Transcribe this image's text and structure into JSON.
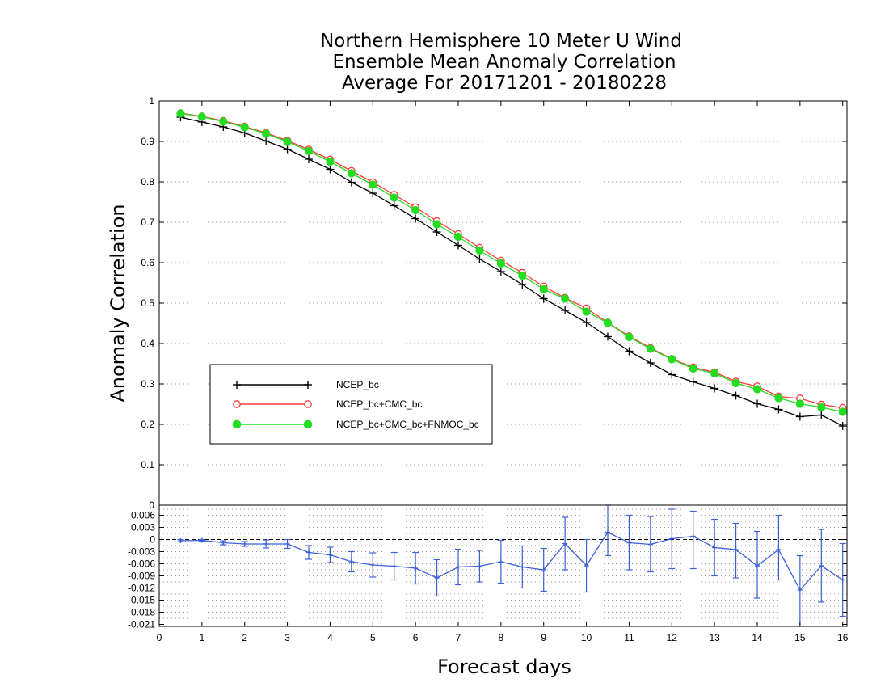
{
  "title_lines": [
    "Northern Hemisphere 10 Meter U Wind",
    "Ensemble Mean Anomaly Correlation",
    "Average For 20171201 - 20180228"
  ],
  "chart_data": [
    {
      "type": "line",
      "ylabel": "Anomaly Correlation",
      "xlim": [
        0,
        16.1
      ],
      "ylim": [
        0,
        1
      ],
      "yticks": [
        0,
        0.1,
        0.2,
        0.3,
        0.4,
        0.5,
        0.6,
        0.7,
        0.8,
        0.9,
        1
      ],
      "ytick_labels": [
        "0",
        "0.1",
        "0.2",
        "0.3",
        "0.4",
        "0.5",
        "0.6",
        "0.7",
        "0.8",
        "0.9",
        "1"
      ],
      "grid": true,
      "legend_position": "lower-left",
      "x": [
        0.5,
        1,
        1.5,
        2,
        2.5,
        3,
        3.5,
        4,
        4.5,
        5,
        5.5,
        6,
        6.5,
        7,
        7.5,
        8,
        8.5,
        9,
        9.5,
        10,
        10.5,
        11,
        11.5,
        12,
        12.5,
        13,
        13.5,
        14,
        14.5,
        15,
        15.5,
        16
      ],
      "series": [
        {
          "name": "NCEP_bc",
          "color": "#000000",
          "marker": "plus",
          "values": [
            0.96,
            0.948,
            0.936,
            0.921,
            0.901,
            0.881,
            0.856,
            0.831,
            0.799,
            0.772,
            0.741,
            0.709,
            0.676,
            0.643,
            0.609,
            0.578,
            0.546,
            0.511,
            0.482,
            0.452,
            0.417,
            0.381,
            0.352,
            0.323,
            0.305,
            0.289,
            0.271,
            0.251,
            0.237,
            0.219,
            0.223,
            0.196
          ]
        },
        {
          "name": "NCEP_bc+CMC_bc",
          "color": "#ff3b3b",
          "marker": "open-circle",
          "values": [
            0.97,
            0.962,
            0.951,
            0.937,
            0.921,
            0.902,
            0.88,
            0.855,
            0.827,
            0.799,
            0.768,
            0.737,
            0.703,
            0.671,
            0.637,
            0.605,
            0.575,
            0.541,
            0.513,
            0.487,
            0.452,
            0.418,
            0.389,
            0.362,
            0.341,
            0.329,
            0.306,
            0.294,
            0.269,
            0.264,
            0.249,
            0.241
          ]
        },
        {
          "name": "NCEP_bc+CMC_bc+FNMOC_bc",
          "color": "#22dd22",
          "marker": "filled-circle",
          "values": [
            0.969,
            0.961,
            0.949,
            0.935,
            0.919,
            0.899,
            0.876,
            0.85,
            0.821,
            0.793,
            0.761,
            0.73,
            0.695,
            0.664,
            0.63,
            0.598,
            0.568,
            0.534,
            0.511,
            0.479,
            0.451,
            0.416,
            0.387,
            0.361,
            0.338,
            0.326,
            0.302,
            0.287,
            0.265,
            0.251,
            0.242,
            0.231
          ]
        }
      ]
    },
    {
      "type": "line",
      "xlabel": "Forecast days",
      "xlim": [
        0,
        16.1
      ],
      "xticks": [
        0,
        1,
        2,
        3,
        4,
        5,
        6,
        7,
        8,
        9,
        10,
        11,
        12,
        13,
        14,
        15,
        16
      ],
      "xtick_labels": [
        "0",
        "1",
        "2",
        "3",
        "4",
        "5",
        "6",
        "7",
        "8",
        "9",
        "10",
        "11",
        "12",
        "13",
        "14",
        "15",
        "16"
      ],
      "ylim": [
        -0.0215,
        0.0085
      ],
      "ytick_labels": [
        "0.006",
        "0.003",
        "0",
        "-0.003",
        "-0.006",
        "-0.009",
        "-0.012",
        "-0.015",
        "-0.018",
        "-0.021"
      ],
      "grid": true,
      "reference_line": 0,
      "color": "#3a5fd9",
      "x": [
        0.5,
        1,
        1.5,
        2,
        2.5,
        3,
        3.5,
        4,
        4.5,
        5,
        5.5,
        6,
        6.5,
        7,
        7.5,
        8,
        8.5,
        9,
        9.5,
        10,
        10.5,
        11,
        11.5,
        12,
        12.5,
        13,
        13.5,
        14,
        14.5,
        15,
        15.5,
        16
      ],
      "values": [
        -0.0003,
        -0.0002,
        -0.0008,
        -0.0011,
        -0.0011,
        -0.0011,
        -0.0032,
        -0.0038,
        -0.0055,
        -0.0063,
        -0.0066,
        -0.0071,
        -0.0095,
        -0.0068,
        -0.0066,
        -0.0055,
        -0.0068,
        -0.0075,
        -0.001,
        -0.0065,
        0.0018,
        -0.0008,
        -0.0012,
        0.0002,
        0.0008,
        -0.002,
        -0.0025,
        -0.0065,
        -0.0025,
        -0.0125,
        -0.0065,
        -0.01
      ],
      "error_low": [
        -0.0006,
        -0.0004,
        -0.0013,
        -0.0017,
        -0.0021,
        -0.0022,
        -0.0049,
        -0.0057,
        -0.008,
        -0.0093,
        -0.01,
        -0.011,
        -0.014,
        -0.0112,
        -0.0105,
        -0.0108,
        -0.012,
        -0.0128,
        -0.0075,
        -0.013,
        -0.004,
        -0.0075,
        -0.008,
        -0.0072,
        -0.0072,
        -0.009,
        -0.0095,
        -0.0145,
        -0.01,
        -0.0215,
        -0.0155,
        -0.019
      ],
      "error_high": [
        0.0,
        0.0,
        -0.0003,
        -0.0005,
        -0.0001,
        0.0,
        -0.0015,
        -0.0019,
        -0.003,
        -0.0033,
        -0.0032,
        -0.0032,
        -0.005,
        -0.0024,
        -0.0027,
        -0.0002,
        -0.0016,
        -0.0022,
        0.0055,
        0.0,
        0.0085,
        0.006,
        0.0057,
        0.0075,
        0.007,
        0.005,
        0.004,
        0.002,
        0.006,
        -0.004,
        0.0025,
        -0.001
      ]
    }
  ]
}
